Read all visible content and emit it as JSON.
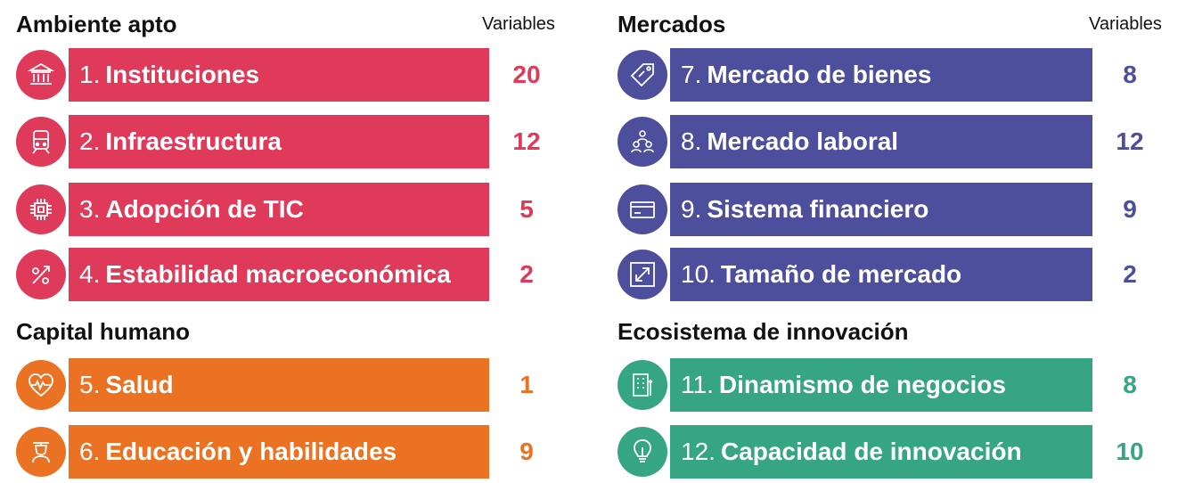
{
  "variables_header": "Variables",
  "colors": {
    "red": "#e03a5a",
    "orange": "#ea7222",
    "purple": "#4e4f9c",
    "green": "#36a582"
  },
  "groups": [
    {
      "title": "Ambiente apto",
      "color": "#e03a5a",
      "pillars": [
        {
          "number": "1.",
          "name": "Instituciones",
          "variables": "20",
          "icon": "institution-icon"
        },
        {
          "number": "2.",
          "name": "Infraestructura",
          "variables": "12",
          "icon": "train-icon"
        },
        {
          "number": "3.",
          "name": "Adopción de TIC",
          "variables": "5",
          "icon": "chip-icon"
        },
        {
          "number": "4.",
          "name": "Estabilidad macroeconómica",
          "variables": "2",
          "icon": "percent-icon"
        }
      ]
    },
    {
      "title": "Capital humano",
      "color": "#ea7222",
      "pillars": [
        {
          "number": "5.",
          "name": "Salud",
          "variables": "1",
          "icon": "heart-pulse-icon"
        },
        {
          "number": "6.",
          "name": "Educación y habilidades",
          "variables": "9",
          "icon": "graduate-icon"
        }
      ]
    },
    {
      "title": "Mercados",
      "color": "#4e4f9c",
      "pillars": [
        {
          "number": "7.",
          "name": "Mercado de bienes",
          "variables": "8",
          "icon": "tag-icon"
        },
        {
          "number": "8.",
          "name": "Mercado laboral",
          "variables": "12",
          "icon": "people-icon"
        },
        {
          "number": "9.",
          "name": "Sistema financiero",
          "variables": "9",
          "icon": "card-icon"
        },
        {
          "number": "10.",
          "name": "Tamaño de mercado",
          "variables": "2",
          "icon": "expand-icon"
        }
      ]
    },
    {
      "title": "Ecosistema de innovación",
      "color": "#36a582",
      "pillars": [
        {
          "number": "11.",
          "name": "Dinamismo de negocios",
          "variables": "8",
          "icon": "business-icon"
        },
        {
          "number": "12.",
          "name": "Capacidad de innovación",
          "variables": "10",
          "icon": "lightbulb-icon"
        }
      ]
    }
  ]
}
